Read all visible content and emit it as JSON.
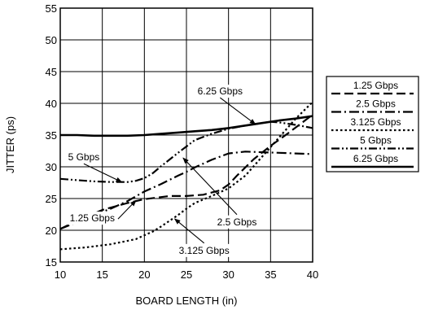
{
  "chart_data": {
    "type": "line",
    "title": "",
    "xlabel": "BOARD LENGTH (in)",
    "ylabel": "JITTER (ps)",
    "xlim": [
      10,
      40
    ],
    "ylim": [
      15,
      55
    ],
    "xticks": [
      10,
      15,
      20,
      25,
      30,
      35,
      40
    ],
    "yticks": [
      15,
      20,
      25,
      30,
      35,
      40,
      45,
      50,
      55
    ],
    "grid": true,
    "legend_position": "right",
    "series": [
      {
        "name": "1.25 Gbps",
        "style": "long-dash",
        "x": [
          10,
          12,
          15,
          18,
          20,
          23,
          25,
          27,
          29,
          30,
          31,
          33,
          35,
          37,
          38,
          39,
          40
        ],
        "y": [
          20.2,
          21.5,
          23.2,
          24.3,
          24.9,
          25.4,
          25.4,
          25.6,
          26.3,
          27.2,
          28.6,
          31.2,
          33.3,
          35.2,
          36.2,
          37.2,
          38.2
        ]
      },
      {
        "name": "2.5 Gbps",
        "style": "dash-dot",
        "x": [
          10,
          12,
          14,
          16,
          18,
          20,
          22,
          24,
          25,
          26,
          28,
          30,
          32,
          34,
          36,
          38,
          40
        ],
        "y": [
          20.2,
          21.3,
          22.4,
          23.4,
          24.6,
          26.1,
          27.3,
          28.6,
          29.2,
          29.9,
          31.1,
          32.1,
          32.4,
          32.3,
          32.2,
          32.1,
          32.0
        ]
      },
      {
        "name": "3.125 Gbps",
        "style": "dotted",
        "x": [
          10,
          13,
          16,
          19,
          20,
          21,
          22,
          24,
          25,
          26,
          28,
          30,
          32,
          34,
          36,
          38,
          40
        ],
        "y": [
          17.0,
          17.3,
          17.8,
          18.6,
          19.2,
          19.8,
          20.6,
          22.4,
          23.4,
          24.3,
          25.4,
          26.6,
          28.6,
          31.6,
          34.6,
          37.6,
          40.2
        ]
      },
      {
        "name": "5 Gbps",
        "style": "dash-dot-dot",
        "x": [
          10,
          12,
          14,
          16,
          18,
          19,
          20,
          21,
          22,
          24,
          26,
          28,
          30,
          32,
          34,
          35,
          36,
          38,
          40
        ],
        "y": [
          28.1,
          27.9,
          27.7,
          27.6,
          27.6,
          27.8,
          28.2,
          29.0,
          30.1,
          32.2,
          34.2,
          35.2,
          36.0,
          36.5,
          36.9,
          37.1,
          37.0,
          36.6,
          36.1
        ]
      },
      {
        "name": "6.25 Gbps",
        "style": "solid",
        "x": [
          10,
          12,
          14,
          16,
          18,
          20,
          22,
          24,
          26,
          28,
          30,
          32,
          34,
          36,
          38,
          40
        ],
        "y": [
          35.0,
          35.0,
          34.9,
          34.9,
          34.9,
          35.0,
          35.2,
          35.4,
          35.6,
          35.8,
          36.1,
          36.5,
          36.9,
          37.3,
          37.6,
          38.0
        ]
      }
    ],
    "annotations": [
      {
        "text": "6.25 Gbps",
        "label_at": [
          29.0,
          41.4
        ],
        "arrow_to": [
          33.2,
          36.7
        ]
      },
      {
        "text": "5 Gbps",
        "label_at": [
          12.8,
          31.0
        ],
        "arrow_to": [
          17.3,
          27.6
        ]
      },
      {
        "text": "1.25 Gbps",
        "label_at": [
          13.8,
          21.4
        ],
        "arrow_to": [
          19.0,
          24.7
        ]
      },
      {
        "text": "2.5 Gbps",
        "label_at": [
          31.0,
          20.8
        ],
        "arrow_to": [
          24.6,
          31.4
        ]
      },
      {
        "text": "3.125 Gbps",
        "label_at": [
          27.1,
          16.3
        ],
        "arrow_to": [
          23.6,
          21.8
        ]
      }
    ]
  }
}
